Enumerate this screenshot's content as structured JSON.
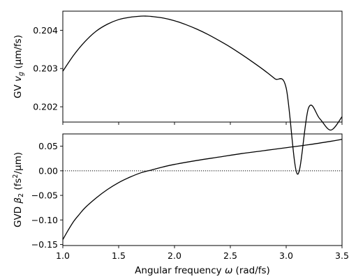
{
  "chart_data": [
    {
      "type": "line",
      "ylabel": "GV v_g (µm/fs)",
      "ylabel_parts": {
        "prefix": "GV ",
        "var": "v",
        "sub": "g",
        "unit": " (µm/fs)"
      },
      "xlim": [
        1.0,
        3.5
      ],
      "ylim": [
        0.2016,
        0.2045
      ],
      "xticks": [
        1.0,
        1.5,
        2.0,
        2.5,
        3.0,
        3.5
      ],
      "yticks": [
        0.202,
        0.203,
        0.204
      ],
      "ytick_labels": [
        "0.202",
        "0.203",
        "0.204"
      ],
      "grid": false,
      "series": [
        {
          "color": "#000000",
          "x": [
            1.0,
            1.1,
            1.2,
            1.3,
            1.4,
            1.5,
            1.6,
            1.7,
            1.75,
            1.8,
            1.9,
            2.0,
            2.1,
            2.2,
            2.3,
            2.4,
            2.5,
            2.6,
            2.7,
            2.8,
            2.9,
            3.0,
            3.1,
            3.2,
            3.3,
            3.4,
            3.5
          ],
          "values": [
            0.20293,
            0.20336,
            0.20371,
            0.20398,
            0.20416,
            0.20428,
            0.20434,
            0.20437,
            0.20437,
            0.20436,
            0.20432,
            0.20425,
            0.20415,
            0.20403,
            0.20389,
            0.20373,
            0.20356,
            0.20337,
            0.20317,
            0.20296,
            0.20273,
            0.20249,
            0.20024,
            0.20197,
            0.20169,
            0.20139,
            0.20174
          ]
        }
      ]
    },
    {
      "type": "line",
      "ylabel": "GVD β_2 (fs²/µm)",
      "ylabel_parts": {
        "prefix": "GVD ",
        "var": "β",
        "sub": "2",
        "unit_pre": " (fs",
        "sup": "2",
        "unit_post": "/µm)"
      },
      "xlabel": "Angular frequency ω (rad/fs)",
      "xlabel_parts": {
        "prefix": "Angular frequency ",
        "var": "ω",
        "unit": " (rad/fs)"
      },
      "xlim": [
        1.0,
        3.5
      ],
      "ylim": [
        -0.152,
        0.075
      ],
      "xticks": [
        1.0,
        1.5,
        2.0,
        2.5,
        3.0,
        3.5
      ],
      "xtick_labels": [
        "1.0",
        "1.5",
        "2.0",
        "2.5",
        "3.0",
        "3.5"
      ],
      "yticks": [
        0.05,
        0.0,
        -0.05,
        -0.1,
        -0.15
      ],
      "ytick_labels": [
        "0.05",
        "0.00",
        "−0.05",
        "−0.10",
        "−0.15"
      ],
      "reference_line": {
        "y": 0.0,
        "style": "dotted"
      },
      "grid": false,
      "series": [
        {
          "color": "#000000",
          "x": [
            1.0,
            1.05,
            1.1,
            1.15,
            1.2,
            1.3,
            1.4,
            1.5,
            1.6,
            1.7,
            1.8,
            1.9,
            2.0,
            2.2,
            2.4,
            2.6,
            2.8,
            3.0,
            3.2,
            3.4,
            3.5
          ],
          "values": [
            -0.14,
            -0.12,
            -0.102,
            -0.088,
            -0.075,
            -0.055,
            -0.038,
            -0.024,
            -0.013,
            -0.004,
            0.002,
            0.008,
            0.013,
            0.021,
            0.028,
            0.035,
            0.041,
            0.047,
            0.053,
            0.06,
            0.064
          ]
        }
      ]
    }
  ]
}
